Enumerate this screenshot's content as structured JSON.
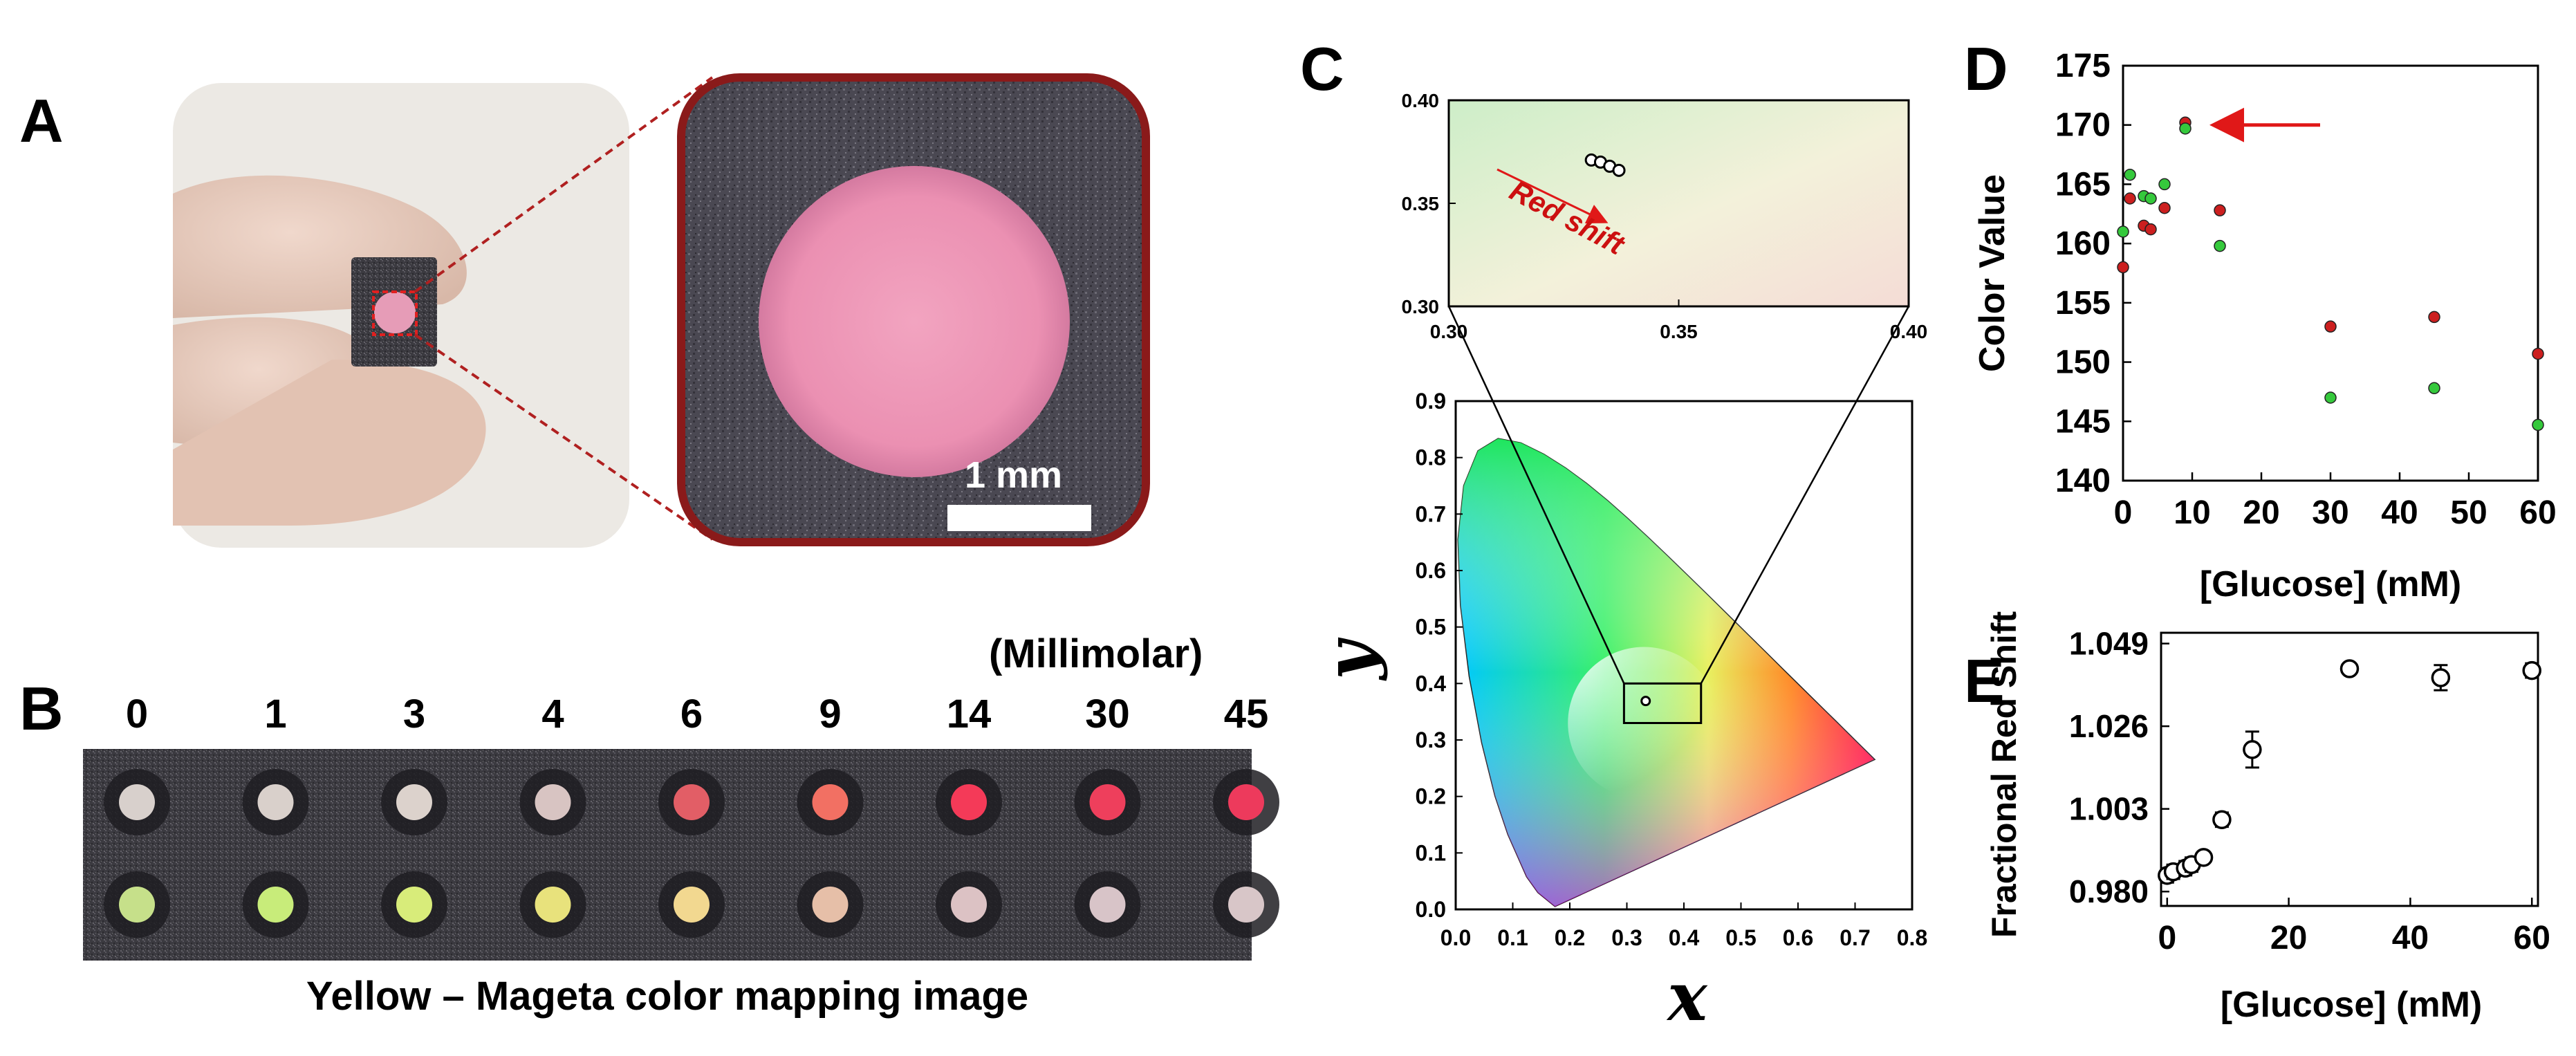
{
  "panels": {
    "A": {
      "letter": "A",
      "scale_bar": "1 mm"
    },
    "B": {
      "letter": "B",
      "unit": "(Millimolar)",
      "concentrations": [
        "0",
        "1",
        "3",
        "4",
        "6",
        "9",
        "14",
        "30",
        "45"
      ],
      "caption": "Yellow – Mageta color mapping image",
      "colors": {
        "top": [
          "#d8d0cc",
          "#d9d0cb",
          "#dcd2cc",
          "#d8c4c2",
          "#e25e66",
          "#f27063",
          "#f43a58",
          "#ee3f5c",
          "#ed3a5c"
        ],
        "bottom": [
          "#c6e08a",
          "#c8ec7a",
          "#d8ec7a",
          "#e8e27c",
          "#f2d890",
          "#e6bfa8",
          "#dcc2c4",
          "#d8c4c8",
          "#d8c6c8"
        ]
      }
    },
    "C": {
      "letter": "C",
      "inset_label": "Red shift",
      "xlabel": "x",
      "ylabel": "y",
      "x_ticks": [
        "0.0",
        "0.1",
        "0.2",
        "0.3",
        "0.4",
        "0.5",
        "0.6",
        "0.7",
        "0.8"
      ],
      "y_ticks": [
        "0.0",
        "0.1",
        "0.2",
        "0.3",
        "0.4",
        "0.5",
        "0.6",
        "0.7",
        "0.8",
        "0.9"
      ],
      "inset_x_ticks": [
        "0.30",
        "0.35",
        "0.40"
      ],
      "inset_y_ticks": [
        "0.30",
        "0.35",
        "0.40"
      ]
    },
    "D": {
      "letter": "D",
      "ylabel": "Color Value",
      "xlabel": "[Glucose] (mM)",
      "x_ticks": [
        "0",
        "10",
        "20",
        "30",
        "40",
        "50",
        "60"
      ],
      "y_ticks": [
        "140",
        "145",
        "150",
        "155",
        "160",
        "165",
        "170",
        "175"
      ]
    },
    "E": {
      "letter": "E",
      "ylabel": "Fractional Red Shift",
      "xlabel": "[Glucose] (mM)",
      "x_ticks": [
        "0",
        "20",
        "40",
        "60"
      ],
      "y_ticks": [
        "0.980",
        "1.003",
        "1.026",
        "1.049"
      ]
    }
  },
  "chart_data": [
    {
      "type": "scatter",
      "panel": "C",
      "description_of_axes": "CIE 1931 chromaticity",
      "xlim": [
        0.0,
        0.8
      ],
      "ylim": [
        0.0,
        0.9
      ],
      "inset_xlim": [
        0.3,
        0.4
      ],
      "inset_ylim": [
        0.3,
        0.4
      ],
      "inset_points": [
        {
          "x": 0.331,
          "y": 0.371
        },
        {
          "x": 0.333,
          "y": 0.37
        },
        {
          "x": 0.335,
          "y": 0.368
        },
        {
          "x": 0.337,
          "y": 0.366
        }
      ],
      "main_points": [
        {
          "x": 0.333,
          "y": 0.369
        }
      ]
    },
    {
      "type": "scatter",
      "panel": "D",
      "xlabel": "[Glucose] (mM)",
      "ylabel": "Color Value",
      "xlim": [
        0,
        60
      ],
      "ylim": [
        140,
        175
      ],
      "series": [
        {
          "color": "#cc1f1f",
          "points": [
            {
              "x": 0,
              "y": 158
            },
            {
              "x": 1,
              "y": 163.8
            },
            {
              "x": 3,
              "y": 161.5
            },
            {
              "x": 4,
              "y": 161.2
            },
            {
              "x": 6,
              "y": 163
            },
            {
              "x": 9,
              "y": 170.2
            },
            {
              "x": 14,
              "y": 162.8
            },
            {
              "x": 30,
              "y": 153
            },
            {
              "x": 45,
              "y": 153.8
            },
            {
              "x": 60,
              "y": 150.7
            }
          ]
        },
        {
          "color": "#35c93c",
          "points": [
            {
              "x": 0,
              "y": 161
            },
            {
              "x": 1,
              "y": 165.8
            },
            {
              "x": 3,
              "y": 164
            },
            {
              "x": 4,
              "y": 163.8
            },
            {
              "x": 6,
              "y": 165
            },
            {
              "x": 9,
              "y": 169.7
            },
            {
              "x": 14,
              "y": 159.8
            },
            {
              "x": 30,
              "y": 147
            },
            {
              "x": 45,
              "y": 147.8
            },
            {
              "x": 60,
              "y": 144.7
            }
          ]
        }
      ],
      "annotation": {
        "type": "arrow",
        "points_to": {
          "x": 9,
          "y": 170
        }
      }
    },
    {
      "type": "scatter",
      "panel": "E",
      "xlabel": "[Glucose] (mM)",
      "ylabel": "Fractional Red Shift",
      "xlim": [
        -1,
        61
      ],
      "ylim": [
        0.98,
        1.049
      ],
      "points": [
        {
          "x": 0,
          "y": 0.9845,
          "err": 0.002
        },
        {
          "x": 1,
          "y": 0.9855,
          "err": 0.002
        },
        {
          "x": 3,
          "y": 0.9865,
          "err": 0.002
        },
        {
          "x": 4,
          "y": 0.9875,
          "err": 0.002
        },
        {
          "x": 6,
          "y": 0.9895,
          "err": 0.0015
        },
        {
          "x": 9,
          "y": 1.0,
          "err": 0.002
        },
        {
          "x": 14,
          "y": 1.0195,
          "err": 0.005
        },
        {
          "x": 30,
          "y": 1.042,
          "err": 0.0015
        },
        {
          "x": 45,
          "y": 1.0395,
          "err": 0.0035
        },
        {
          "x": 60,
          "y": 1.0415,
          "err": 0.002
        }
      ]
    }
  ]
}
